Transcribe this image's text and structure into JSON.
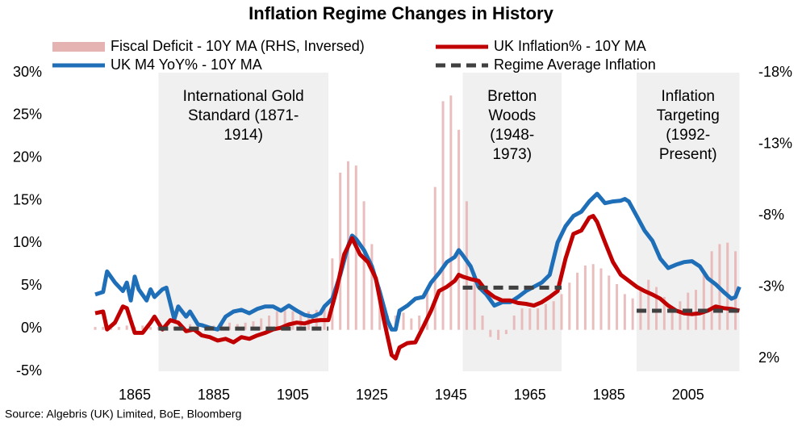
{
  "chart_data": {
    "type": "line",
    "title": "Inflation Regime Changes in History",
    "source": "Source: Algebris (UK) Limited, BoE, Bloomberg",
    "xlim": [
      1850,
      2022
    ],
    "xticks": [
      1865,
      1885,
      1905,
      1925,
      1945,
      1965,
      1985,
      2005
    ],
    "ylim": [
      -5,
      30
    ],
    "yticks": [
      {
        "value": -5,
        "label": "-5%"
      },
      {
        "value": 0,
        "label": "0%"
      },
      {
        "value": 5,
        "label": "5%"
      },
      {
        "value": 10,
        "label": "10%"
      },
      {
        "value": 15,
        "label": "15%"
      },
      {
        "value": 20,
        "label": "20%"
      },
      {
        "value": 25,
        "label": "25%"
      },
      {
        "value": 30,
        "label": "30%"
      }
    ],
    "y2lim": [
      -18,
      2.9
    ],
    "y2_inverted": true,
    "y2ticks": [
      {
        "value": -18,
        "label": "-18%"
      },
      {
        "value": -13,
        "label": "-13%"
      },
      {
        "value": -8,
        "label": "-8%"
      },
      {
        "value": -3,
        "label": "-3%"
      },
      {
        "value": 2,
        "label": "2%"
      }
    ],
    "series": [
      {
        "name": "Fiscal Deficit - 10Y MA (RHS, Inversed)",
        "type": "bar",
        "axis": "y2",
        "color": "#e6b3b3",
        "x": [
          1855,
          1857,
          1859,
          1861,
          1863,
          1865,
          1867,
          1869,
          1871,
          1873,
          1875,
          1877,
          1879,
          1881,
          1883,
          1885,
          1887,
          1889,
          1891,
          1893,
          1895,
          1897,
          1899,
          1901,
          1903,
          1905,
          1907,
          1909,
          1911,
          1913,
          1915,
          1917,
          1919,
          1921,
          1923,
          1925,
          1927,
          1929,
          1931,
          1933,
          1935,
          1937,
          1939,
          1941,
          1943,
          1945,
          1947,
          1949,
          1951,
          1953,
          1955,
          1957,
          1959,
          1961,
          1963,
          1965,
          1967,
          1969,
          1971,
          1973,
          1975,
          1977,
          1979,
          1981,
          1983,
          1985,
          1987,
          1989,
          1991,
          1993,
          1995,
          1997,
          1999,
          2001,
          2003,
          2005,
          2007,
          2009,
          2011,
          2013,
          2015,
          2017
        ],
        "values": [
          -0.2,
          -0.2,
          -0.1,
          -0.2,
          -0.3,
          -0.2,
          -0.3,
          -0.2,
          -0.2,
          -0.3,
          -0.2,
          -0.3,
          -0.4,
          -0.3,
          -0.2,
          -0.3,
          -0.4,
          -0.5,
          -0.4,
          -0.5,
          -0.6,
          -0.8,
          -1.0,
          -1.3,
          -1.4,
          -1.3,
          -1.2,
          -1.3,
          -1.4,
          -1.5,
          -5,
          -11,
          -11.8,
          -11.5,
          -9,
          -6,
          -3,
          -1,
          -1,
          -1.2,
          -0.8,
          -1,
          -3,
          -10,
          -16,
          -16.4,
          -14,
          -9,
          -4,
          -1,
          0.5,
          0.7,
          0.3,
          -1,
          -1.5,
          -1.5,
          -1.5,
          -1.8,
          -2,
          -2.5,
          -3.3,
          -4,
          -4.5,
          -4.6,
          -4.3,
          -3.8,
          -3.2,
          -2.5,
          -2.2,
          -2.8,
          -3.5,
          -3,
          -2.3,
          -1.5,
          -2,
          -2.6,
          -2.8,
          -4,
          -5.5,
          -6,
          -6.1,
          -5.5
        ]
      },
      {
        "name": "UK M4 YoY% - 10Y MA",
        "type": "line",
        "color": "#1f6fb8",
        "x": [
          1855,
          1857,
          1858,
          1860,
          1862,
          1863,
          1864,
          1865,
          1866,
          1868,
          1869,
          1870,
          1872,
          1873,
          1875,
          1876,
          1878,
          1879,
          1881,
          1882,
          1884,
          1886,
          1888,
          1890,
          1892,
          1894,
          1896,
          1898,
          1900,
          1902,
          1904,
          1906,
          1908,
          1910,
          1912,
          1913,
          1915,
          1917,
          1919,
          1920,
          1921,
          1923,
          1925,
          1927,
          1929,
          1930,
          1931,
          1932,
          1934,
          1936,
          1938,
          1940,
          1942,
          1944,
          1946,
          1947,
          1948,
          1950,
          1952,
          1954,
          1956,
          1958,
          1960,
          1962,
          1964,
          1966,
          1968,
          1970,
          1972,
          1974,
          1976,
          1978,
          1980,
          1982,
          1984,
          1986,
          1988,
          1989,
          1990,
          1992,
          1994,
          1996,
          1998,
          2000,
          2002,
          2004,
          2006,
          2008,
          2010,
          2012,
          2014,
          2016,
          2017,
          2018
        ],
        "values": [
          4.0,
          4.3,
          6.7,
          5.4,
          4.4,
          5.4,
          3.3,
          6.1,
          4.6,
          3.3,
          4.6,
          3.7,
          4.6,
          4.8,
          1.1,
          2.6,
          1.4,
          2.0,
          0.5,
          0.4,
          0.1,
          -0.1,
          1.4,
          2.0,
          2.2,
          1.8,
          2.3,
          2.6,
          2.6,
          2.1,
          2.7,
          2.1,
          1.6,
          1.4,
          1.8,
          2.6,
          3.5,
          6.3,
          9.7,
          10.9,
          10.5,
          9.2,
          7.3,
          4.3,
          0.9,
          -0.1,
          -0.1,
          2.1,
          2.7,
          3.5,
          3.7,
          5.4,
          6.5,
          7.8,
          8.4,
          9.2,
          8.6,
          7.3,
          4.9,
          4.0,
          2.7,
          3.1,
          3.1,
          3.7,
          4.4,
          4.9,
          5.4,
          6.3,
          10.1,
          12.0,
          13.2,
          13.7,
          14.9,
          15.8,
          14.7,
          14.9,
          15.0,
          15.2,
          14.9,
          13.2,
          11.5,
          10.3,
          8.2,
          7.1,
          7.5,
          7.8,
          7.9,
          7.3,
          5.9,
          5.2,
          4.3,
          3.5,
          3.7,
          4.9
        ]
      },
      {
        "name": "UK Inflation% - 10Y MA",
        "type": "line",
        "color": "#c00000",
        "x": [
          1855,
          1857,
          1858,
          1860,
          1862,
          1863,
          1865,
          1867,
          1869,
          1870,
          1872,
          1874,
          1876,
          1878,
          1880,
          1882,
          1884,
          1886,
          1888,
          1890,
          1892,
          1894,
          1896,
          1898,
          1900,
          1902,
          1904,
          1906,
          1908,
          1910,
          1912,
          1914,
          1916,
          1918,
          1920,
          1922,
          1924,
          1926,
          1928,
          1930,
          1931,
          1932,
          1934,
          1936,
          1938,
          1940,
          1942,
          1944,
          1946,
          1947,
          1948,
          1950,
          1952,
          1954,
          1956,
          1958,
          1960,
          1962,
          1964,
          1966,
          1968,
          1970,
          1972,
          1974,
          1976,
          1978,
          1980,
          1981,
          1982,
          1984,
          1986,
          1988,
          1990,
          1992,
          1994,
          1996,
          1998,
          2000,
          2002,
          2004,
          2006,
          2008,
          2010,
          2012,
          2014,
          2016,
          2018
        ],
        "values": [
          1.8,
          2.0,
          -0.1,
          0.7,
          2.6,
          2.4,
          -0.5,
          -0.5,
          0.7,
          1.4,
          -0.1,
          1.0,
          0.7,
          -0.3,
          -0.1,
          -0.8,
          -1.0,
          -1.4,
          -1.2,
          -1.6,
          -1.0,
          -1.2,
          -0.8,
          -0.5,
          -0.1,
          0.1,
          0.5,
          0.7,
          0.6,
          0.9,
          1.0,
          1.0,
          4.4,
          8.7,
          10.6,
          8.7,
          7.8,
          5.9,
          1.1,
          -3.1,
          -3.5,
          -2.2,
          -1.7,
          -1.6,
          0.2,
          2.1,
          4.4,
          4.9,
          5.6,
          6.3,
          6.1,
          5.8,
          5.6,
          4.4,
          3.7,
          3.3,
          3.3,
          3.0,
          2.9,
          2.7,
          3.1,
          3.7,
          4.4,
          8.2,
          11.1,
          11.5,
          13.0,
          13.2,
          12.5,
          10.1,
          7.8,
          6.3,
          5.6,
          4.9,
          4.4,
          4.0,
          3.5,
          2.7,
          2.1,
          1.8,
          1.7,
          1.8,
          2.1,
          2.6,
          2.4,
          2.3,
          2.1
        ]
      }
    ],
    "regime_average_name": "Regime Average Inflation",
    "regime_average_color": "#404040",
    "regimes": [
      {
        "label": [
          "International Gold",
          "Standard (1871-",
          "1914)"
        ],
        "start": 1871,
        "end": 1914,
        "average": 0
      },
      {
        "label": [
          "Bretton",
          "Woods",
          "(1948-",
          "1973)"
        ],
        "start": 1948,
        "end": 1973,
        "average": 4.8
      },
      {
        "label": [
          "Inflation",
          "Targeting",
          "(1992-",
          "Present)"
        ],
        "start": 1992,
        "end": 2018,
        "average": 2.1
      }
    ],
    "shade_color": "#f0f0f0"
  }
}
